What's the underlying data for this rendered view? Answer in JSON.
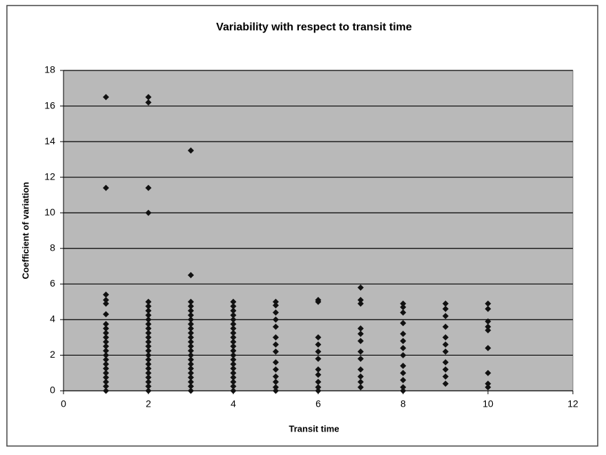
{
  "chart_data": {
    "type": "scatter",
    "title": "Variability with respect to transit time",
    "x_label": "Transit time",
    "y_label": "Coefficient of variation",
    "xlim": [
      0,
      12
    ],
    "xticks": [
      0,
      2,
      4,
      6,
      8,
      10,
      12
    ],
    "ylim": [
      0,
      18
    ],
    "yticks": [
      0,
      2,
      4,
      6,
      8,
      10,
      12,
      14,
      16,
      18
    ],
    "grid": true,
    "color": "#111111",
    "x": [
      1,
      1,
      1,
      1,
      1,
      1,
      1,
      1,
      1,
      1,
      1,
      1,
      1,
      1,
      1,
      1,
      1,
      1,
      1,
      1,
      1,
      1,
      2,
      2,
      2,
      2,
      2,
      2,
      2,
      2,
      2,
      2,
      2,
      2,
      2,
      2,
      2,
      2,
      2,
      2,
      2,
      2,
      2,
      2,
      2,
      2,
      2,
      3,
      3,
      3,
      3,
      3,
      3,
      3,
      3,
      3,
      3,
      3,
      3,
      3,
      3,
      3,
      3,
      3,
      3,
      3,
      3,
      3,
      3,
      3,
      4,
      4,
      4,
      4,
      4,
      4,
      4,
      4,
      4,
      4,
      4,
      4,
      4,
      4,
      4,
      4,
      4,
      4,
      4,
      4,
      4,
      5,
      5,
      5,
      5,
      5,
      5,
      5,
      5,
      5,
      5,
      5,
      5,
      5,
      5,
      6,
      6,
      6,
      6,
      6,
      6,
      6,
      6,
      6,
      6,
      6,
      7,
      7,
      7,
      7,
      7,
      7,
      7,
      7,
      7,
      7,
      7,
      7,
      8,
      8,
      8,
      8,
      8,
      8,
      8,
      8,
      8,
      8,
      8,
      8,
      8,
      9,
      9,
      9,
      9,
      9,
      9,
      9,
      9,
      9,
      9,
      9,
      10,
      10,
      10,
      10,
      10,
      10,
      10,
      10,
      10
    ],
    "y": [
      0,
      0.25,
      0.5,
      0.75,
      1,
      1.25,
      1.5,
      1.75,
      2,
      2.25,
      2.5,
      2.75,
      3,
      3.25,
      3.5,
      3.75,
      4.3,
      4.9,
      5.1,
      5.4,
      11.4,
      16.5,
      0,
      0.25,
      0.5,
      0.75,
      1,
      1.25,
      1.5,
      1.75,
      2,
      2.25,
      2.5,
      2.75,
      3,
      3.25,
      3.5,
      3.75,
      4,
      4.25,
      4.5,
      4.75,
      5,
      10,
      11.4,
      16.2,
      16.5,
      0,
      0.25,
      0.5,
      0.75,
      1,
      1.25,
      1.5,
      1.75,
      2,
      2.25,
      2.5,
      2.75,
      3,
      3.25,
      3.5,
      3.75,
      4,
      4.25,
      4.5,
      4.75,
      5,
      6.5,
      13.5,
      0,
      0.25,
      0.5,
      0.75,
      1,
      1.25,
      1.5,
      1.75,
      2,
      2.25,
      2.5,
      2.75,
      3,
      3.25,
      3.5,
      3.75,
      4,
      4.25,
      4.5,
      4.75,
      5,
      5,
      4.8,
      4.4,
      4,
      3.6,
      3,
      2.6,
      2.2,
      1.6,
      1.2,
      0.8,
      0.5,
      0.2,
      0,
      5.1,
      5,
      3,
      2.6,
      2.2,
      1.8,
      1.2,
      0.9,
      0.5,
      0.2,
      0,
      5.8,
      5.1,
      4.9,
      3.5,
      3.2,
      2.8,
      2.2,
      1.8,
      1.2,
      0.8,
      0.5,
      0.2,
      4.9,
      4.7,
      4.4,
      3.8,
      3.2,
      2.8,
      2.4,
      2,
      1.4,
      1,
      0.6,
      0.2,
      0,
      4.9,
      4.6,
      4.2,
      3.6,
      3,
      2.6,
      2.2,
      1.6,
      1.2,
      0.8,
      0.4,
      4.9,
      4.6,
      3.9,
      3.6,
      3.4,
      2.4,
      1,
      0.4,
      0.2
    ]
  }
}
